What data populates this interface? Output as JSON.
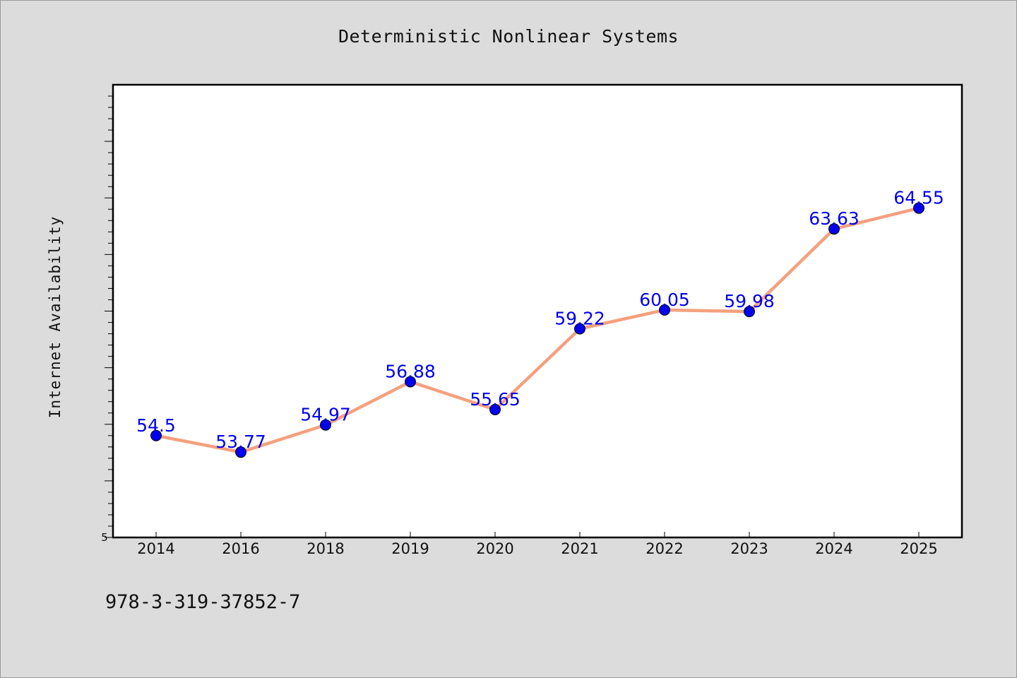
{
  "chart_data": {
    "type": "line",
    "title": "Deterministic Nonlinear Systems",
    "ylabel": "Internet Availability",
    "xlabel": "",
    "categories": [
      "2014",
      "2016",
      "2018",
      "2019",
      "2020",
      "2021",
      "2022",
      "2023",
      "2024",
      "2025"
    ],
    "series": [
      {
        "values": [
          54.5,
          53.77,
          54.97,
          56.88,
          55.65,
          59.22,
          60.05,
          59.98,
          63.63,
          64.55
        ],
        "data_labels": [
          "54.5",
          "53.77",
          "54.97",
          "56.88",
          "55.65",
          "59.22",
          "60.05",
          "59.98",
          "63.63",
          "64.55"
        ],
        "line_color": "#f4a07e",
        "marker_color": "#0000ee"
      }
    ],
    "ylim": [
      50,
      70
    ],
    "y_tick_labels": [
      "5"
    ],
    "grid": false,
    "legend": "none"
  },
  "footnote": "978-3-319-37852-7"
}
